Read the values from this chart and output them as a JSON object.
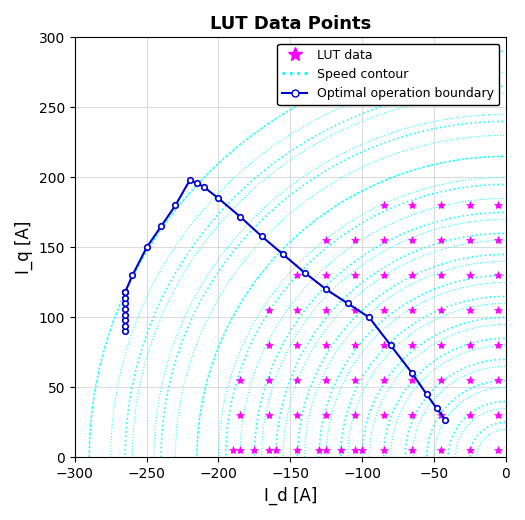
{
  "title": "LUT Data Points",
  "xlabel": "I_d [A]",
  "ylabel": "I_q [A]",
  "xlim": [
    -300,
    0
  ],
  "ylim": [
    0,
    300
  ],
  "xticks": [
    -300,
    -250,
    -200,
    -150,
    -100,
    -50,
    0
  ],
  "yticks": [
    0,
    50,
    100,
    150,
    200,
    250,
    300
  ],
  "speed_contour_color": "#00FFFF",
  "lut_color": "#FF00FF",
  "boundary_color": "#0000CD",
  "background_color": "#FFFFFF",
  "grid_color": "#CCCCCC"
}
